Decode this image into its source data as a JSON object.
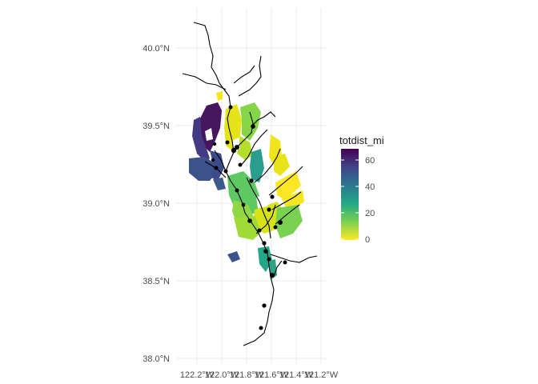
{
  "map": {
    "y_axis_labels": [
      "40.0°N",
      "39.5°N",
      "39.0°N",
      "38.5°N",
      "38.0°N"
    ],
    "x_axis_labels": [
      "122.2°W",
      "122.0°W",
      "121.8°W",
      "121.6°W",
      "121.4°W",
      "121.2°W"
    ],
    "lat_values": [
      40.0,
      39.5,
      39.0,
      38.5,
      38.0
    ],
    "lon_values": [
      -122.2,
      -122.0,
      -121.8,
      -121.6,
      -121.4,
      -121.2
    ]
  },
  "legend": {
    "title": "totdist_mi",
    "ticks": [
      "60",
      "40",
      "20",
      "0"
    ],
    "tick_values": [
      60,
      40,
      20,
      0
    ],
    "range": [
      0,
      70
    ],
    "palette": "viridis",
    "colors": [
      "#440154",
      "#3b528b",
      "#21908c",
      "#5dc863",
      "#fde725"
    ]
  }
}
